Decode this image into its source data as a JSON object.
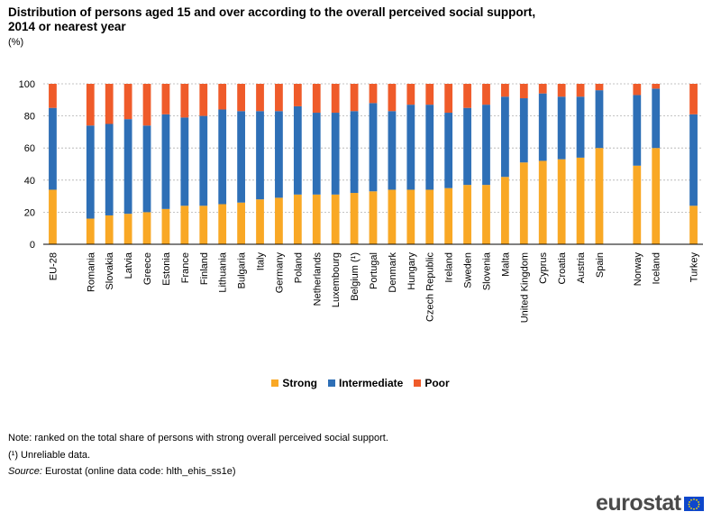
{
  "title": "Distribution of persons aged 15 and over according to the overall perceived social support, 2014 or nearest year",
  "unit": "(%)",
  "colors": {
    "strong": "#f9a825",
    "intermediate": "#2e6fb6",
    "poor": "#ef5b2a",
    "grid": "#b0b0b0"
  },
  "chart_data": {
    "type": "bar",
    "stacked": true,
    "ylim": [
      0,
      100
    ],
    "yticks": [
      0,
      20,
      40,
      60,
      80,
      100
    ],
    "categories": [
      "EU-28",
      "Romania",
      "Slovakia",
      "Latvia",
      "Greece",
      "Estonia",
      "France",
      "Finland",
      "Lithuania",
      "Bulgaria",
      "Italy",
      "Germany",
      "Poland",
      "Netherlands",
      "Luxembourg",
      "Belgium (¹)",
      "Portugal",
      "Denmark",
      "Hungary",
      "Czech Republic",
      "Ireland",
      "Sweden",
      "Slovenia",
      "Malta",
      "United Kingdom",
      "Cyprus",
      "Croatia",
      "Austria",
      "Spain",
      "Norway",
      "Iceland",
      "Turkey"
    ],
    "groups": [
      [
        0
      ],
      [
        1,
        2,
        3,
        4,
        5,
        6,
        7,
        8,
        9,
        10,
        11,
        12,
        13,
        14,
        15,
        16,
        17,
        18,
        19,
        20,
        21,
        22,
        23,
        24,
        25,
        26,
        27,
        28
      ],
      [
        29,
        30
      ],
      [
        31
      ]
    ],
    "series": [
      {
        "name": "Strong",
        "values": [
          34,
          16,
          18,
          19,
          20,
          22,
          24,
          24,
          25,
          26,
          28,
          29,
          31,
          31,
          31,
          32,
          33,
          34,
          34,
          34,
          35,
          37,
          37,
          42,
          51,
          52,
          53,
          54,
          60,
          49,
          60,
          24
        ]
      },
      {
        "name": "Intermediate",
        "values": [
          51,
          58,
          57,
          59,
          54,
          59,
          55,
          56,
          59,
          57,
          55,
          54,
          55,
          51,
          51,
          51,
          55,
          49,
          53,
          53,
          47,
          48,
          50,
          50,
          40,
          42,
          39,
          38,
          36,
          44,
          37,
          57
        ]
      },
      {
        "name": "Poor",
        "values": [
          15,
          26,
          25,
          22,
          26,
          19,
          21,
          20,
          16,
          17,
          17,
          17,
          14,
          18,
          18,
          17,
          12,
          17,
          13,
          13,
          18,
          15,
          13,
          8,
          9,
          6,
          8,
          8,
          4,
          7,
          3,
          19
        ]
      }
    ]
  },
  "legend": {
    "strong": "Strong",
    "intermediate": "Intermediate",
    "poor": "Poor"
  },
  "notes": {
    "note1": "Note: ranked on the total share of persons with strong overall perceived social support.",
    "note2": "(¹) Unreliable data.",
    "source_label": "Source:",
    "source_text": " Eurostat (online data code: hlth_ehis_ss1e)"
  },
  "logo": {
    "text": "eurostat"
  }
}
